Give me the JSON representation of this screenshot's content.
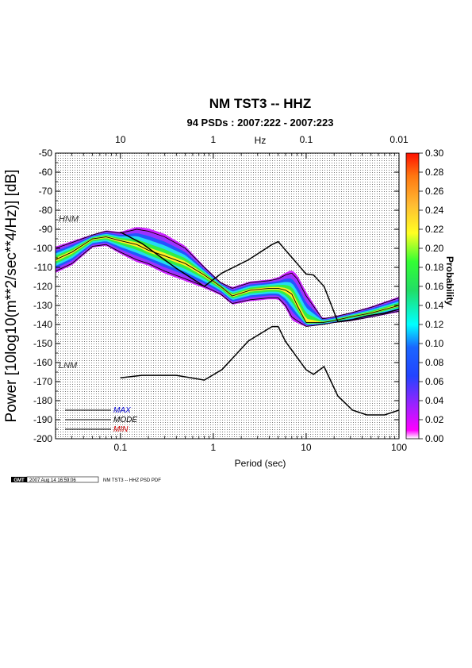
{
  "chart_data": {
    "type": "heatmap",
    "title": "NM TST3 -- HHZ",
    "subtitle": "94 PSDs : 2007:222 - 2007:223",
    "xlabel": "Period (sec)",
    "x_top_label": "Hz",
    "ylabel": "Power [10log10(m**2/sec**4/Hz)] [dB]",
    "colorbar_label": "Probability",
    "x_scale": "log",
    "xlim": [
      0.02,
      100
    ],
    "ylim": [
      -200,
      -50
    ],
    "grid": true,
    "x_ticks": [
      0.1,
      1,
      10,
      100
    ],
    "x_tick_labels": [
      "0.1",
      "1",
      "10",
      "100"
    ],
    "top_ticks_period": [
      0.1,
      1,
      10,
      100
    ],
    "top_tick_labels": [
      "10",
      "1",
      "0.1",
      "0.01"
    ],
    "y_ticks": [
      -50,
      -60,
      -70,
      -80,
      -90,
      -100,
      -110,
      -120,
      -130,
      -140,
      -150,
      -160,
      -170,
      -180,
      -190,
      -200
    ],
    "colorbar_ticks": [
      0.0,
      0.02,
      0.04,
      0.06,
      0.08,
      0.1,
      0.12,
      0.14,
      0.16,
      0.18,
      0.2,
      0.22,
      0.24,
      0.26,
      0.28,
      0.3
    ],
    "colorbar_tick_labels": [
      "0.00",
      "0.02",
      "0.04",
      "0.06",
      "0.08",
      "0.10",
      "0.12",
      "0.14",
      "0.16",
      "0.18",
      "0.20",
      "0.22",
      "0.24",
      "0.26",
      "0.28",
      "0.30"
    ],
    "colorbar_range": [
      0,
      0.3
    ],
    "reference_curves": [
      {
        "name": "HNM",
        "x": [
          0.1,
          0.17,
          0.4,
          0.8,
          1.24,
          2.4,
          4.3,
          5.0,
          6.0,
          10.0,
          12.0,
          15.6,
          21.9,
          31.6,
          45,
          70,
          100
        ],
        "y": [
          -91.5,
          -97.4,
          -110.5,
          -120,
          -113,
          -106,
          -98,
          -96.5,
          -101,
          -113.5,
          -114,
          -120,
          -138.5,
          -137.5,
          -135.5,
          -134,
          -132
        ]
      },
      {
        "name": "LNM",
        "x": [
          0.1,
          0.17,
          0.4,
          0.8,
          1.24,
          2.4,
          4.3,
          5.0,
          6.0,
          10.0,
          12.0,
          15.6,
          21.9,
          31.6,
          45,
          70,
          100
        ],
        "y": [
          -168,
          -166.7,
          -166.7,
          -169.2,
          -163.7,
          -148.6,
          -141.1,
          -141.1,
          -149,
          -163.8,
          -166.2,
          -162.1,
          -177.5,
          -185,
          -187.5,
          -187.5,
          -185
        ]
      }
    ],
    "series": [
      {
        "name": "MAX",
        "color": "#0000cc",
        "x": [
          0.02,
          0.03,
          0.05,
          0.07,
          0.1,
          0.15,
          0.2,
          0.3,
          0.5,
          0.8,
          1.2,
          1.6,
          2.5,
          4,
          5,
          6,
          7,
          8,
          10,
          15,
          20,
          30,
          50,
          100
        ],
        "y": [
          -100,
          -97,
          -93,
          -91,
          -92,
          -90,
          -91,
          -94,
          -100,
          -110,
          -118,
          -121,
          -118,
          -117,
          -116,
          -114,
          -113,
          -116,
          -125,
          -137,
          -136,
          -134,
          -131,
          -126
        ]
      },
      {
        "name": "MODE",
        "color": "#000000",
        "x": [
          0.02,
          0.03,
          0.05,
          0.07,
          0.1,
          0.15,
          0.2,
          0.3,
          0.5,
          0.8,
          1.2,
          1.6,
          2.5,
          4,
          5,
          6,
          7,
          8,
          10,
          15,
          20,
          30,
          50,
          100
        ],
        "y": [
          -106,
          -102,
          -95,
          -94,
          -96,
          -98,
          -101,
          -104,
          -108,
          -114,
          -120,
          -125,
          -122,
          -121,
          -121,
          -122,
          -124,
          -130,
          -139,
          -139,
          -138,
          -136,
          -134,
          -130
        ]
      },
      {
        "name": "MIN",
        "color": "#cc0000",
        "x": [
          0.02,
          0.03,
          0.05,
          0.07,
          0.1,
          0.15,
          0.2,
          0.3,
          0.5,
          0.8,
          1.2,
          1.6,
          2.5,
          4,
          5,
          6,
          7,
          8,
          10,
          15,
          20,
          30,
          50,
          100
        ],
        "y": [
          -112,
          -108,
          -99,
          -98,
          -102,
          -106,
          -108,
          -112,
          -116,
          -120,
          -124,
          -129,
          -127,
          -126,
          -126,
          -130,
          -136,
          -138,
          -141,
          -140,
          -139,
          -138,
          -136,
          -133
        ]
      }
    ],
    "legend": [
      "MAX",
      "MODE",
      "MIN"
    ],
    "legend_position": "bottom-left"
  },
  "footer": {
    "logo_text": "GMT",
    "timestamp": "2007 Aug 14 16:59:06",
    "caption": "NM TST3 -- HHZ PSD PDF"
  }
}
